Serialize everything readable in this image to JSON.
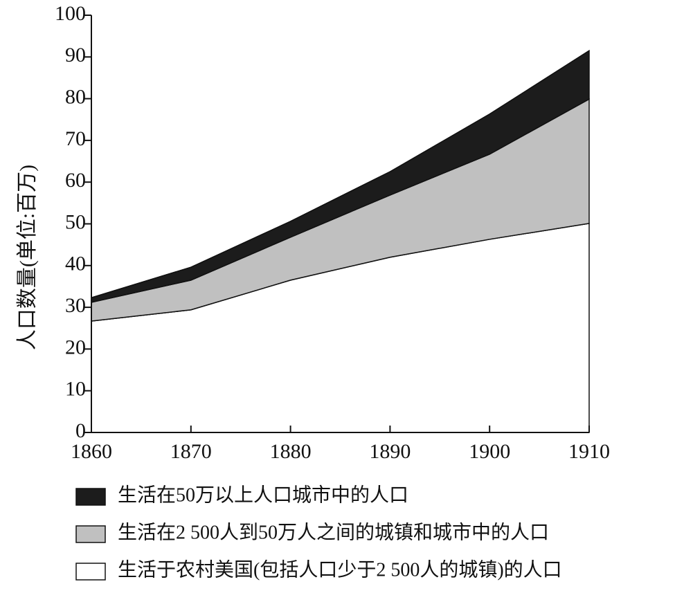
{
  "chart_data": {
    "type": "stacked-area",
    "y_label": "人口数量(单位:百万)",
    "x": [
      1860,
      1870,
      1880,
      1890,
      1900,
      1910
    ],
    "xlim": [
      1860,
      1910
    ],
    "xticks": [
      1860,
      1870,
      1880,
      1890,
      1900,
      1910
    ],
    "ylim": [
      0,
      100
    ],
    "yticks": [
      0,
      10,
      20,
      30,
      40,
      50,
      60,
      70,
      80,
      90,
      100
    ],
    "series": [
      {
        "name": "生活在50万以上人口城市中的人口",
        "color": "#1c1c1c",
        "values": [
          1.1,
          3.1,
          3.8,
          5.6,
          9.6,
          11.6
        ]
      },
      {
        "name": "生活在2 500人到50万人之间的城镇和城市中的人口",
        "color": "#c0c0c0",
        "values": [
          4.5,
          7.1,
          10.3,
          14.9,
          20.4,
          29.8
        ]
      },
      {
        "name": "生活于农村美国(包括人口少于2 500人的城镇)的人口",
        "color": "#ffffff",
        "values": [
          26.7,
          29.4,
          36.5,
          42.0,
          46.3,
          50.1
        ]
      }
    ]
  }
}
